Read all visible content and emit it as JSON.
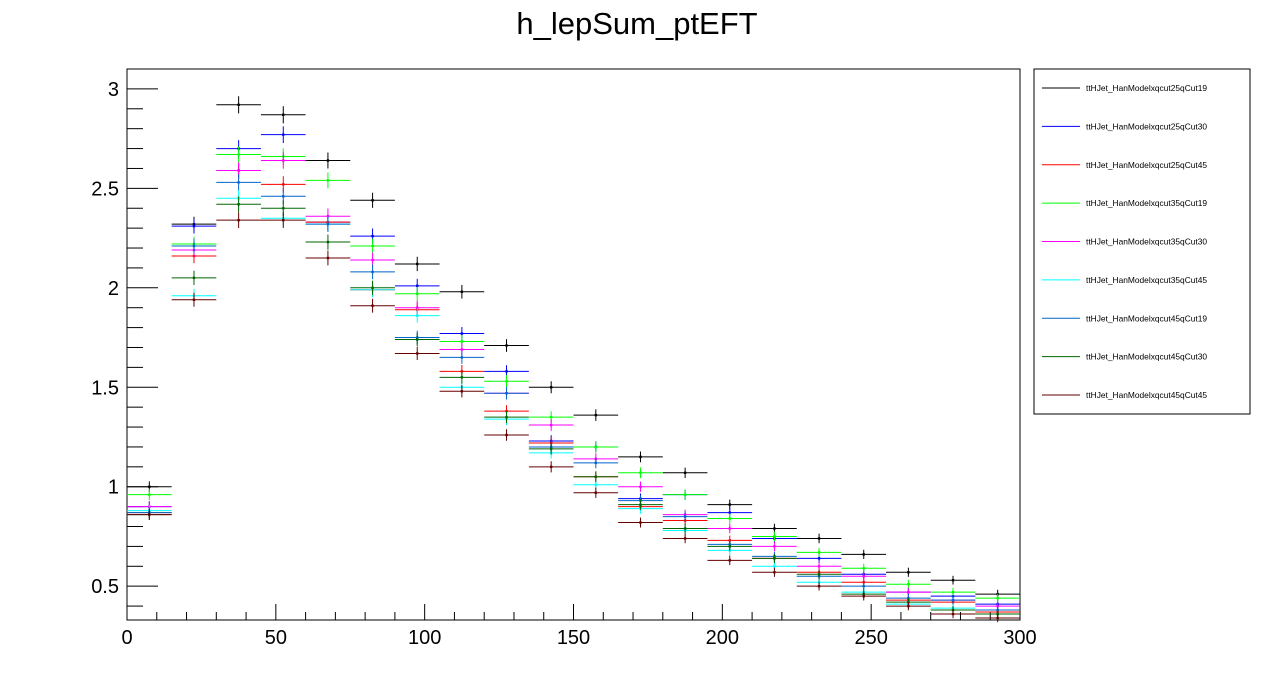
{
  "chart_data": {
    "type": "line",
    "title": "h_lepSum_ptEFT",
    "xlabel": "",
    "ylabel": "",
    "xlim": [
      0,
      300
    ],
    "ylim": [
      0.33,
      3.1
    ],
    "x_ticks": [
      0,
      50,
      100,
      150,
      200,
      250,
      300
    ],
    "y_ticks": [
      0.5,
      1,
      1.5,
      2,
      2.5,
      3
    ],
    "x_tick_labels": [
      "0",
      "50",
      "100",
      "150",
      "200",
      "250",
      "300"
    ],
    "y_tick_labels": [
      "0.5",
      "1",
      "1.5",
      "2",
      "2.5",
      "3"
    ],
    "grid": false,
    "legend_position": "right",
    "bin_edges": [
      0,
      15,
      30,
      45,
      60,
      75,
      90,
      105,
      120,
      135,
      150,
      165,
      180,
      195,
      210,
      225,
      240,
      255,
      270,
      285,
      300
    ],
    "series": [
      {
        "name": "ttHJet_HanModelxqcut25qCut19",
        "color": "#000000",
        "values": [
          1.0,
          2.32,
          2.92,
          2.87,
          2.64,
          2.44,
          2.12,
          1.98,
          1.71,
          1.5,
          1.36,
          1.15,
          1.07,
          0.91,
          0.79,
          0.74,
          0.66,
          0.57,
          0.53,
          0.46
        ],
        "errors": [
          0.012,
          0.022,
          0.028,
          0.028,
          0.025,
          0.023,
          0.021,
          0.019,
          0.017,
          0.015,
          0.014,
          0.012,
          0.011,
          0.01,
          0.009,
          0.009,
          0.008,
          0.008,
          0.007,
          0.007
        ]
      },
      {
        "name": "ttHJet_HanModelxqcut25qCut30",
        "color": "#0000ff",
        "values": [
          0.9,
          2.31,
          2.7,
          2.77,
          2.33,
          2.26,
          2.01,
          1.77,
          1.58,
          1.23,
          1.2,
          0.94,
          0.96,
          0.87,
          0.74,
          0.64,
          0.56,
          0.47,
          0.45,
          0.41
        ],
        "errors": [
          0.012,
          0.022,
          0.027,
          0.027,
          0.024,
          0.023,
          0.02,
          0.018,
          0.016,
          0.014,
          0.013,
          0.011,
          0.011,
          0.01,
          0.009,
          0.008,
          0.008,
          0.007,
          0.007,
          0.007
        ]
      },
      {
        "name": "ttHJet_HanModelxqcut25qCut45",
        "color": "#ff0000",
        "values": [
          0.87,
          2.16,
          2.59,
          2.52,
          2.33,
          1.99,
          1.89,
          1.58,
          1.38,
          1.22,
          1.05,
          0.9,
          0.83,
          0.73,
          0.64,
          0.57,
          0.52,
          0.43,
          0.42,
          0.37
        ],
        "errors": [
          0.012,
          0.021,
          0.026,
          0.026,
          0.024,
          0.021,
          0.02,
          0.017,
          0.015,
          0.014,
          0.012,
          0.011,
          0.01,
          0.009,
          0.009,
          0.008,
          0.007,
          0.007,
          0.007,
          0.006
        ]
      },
      {
        "name": "ttHJet_HanModelxqcut35qCut19",
        "color": "#00ff00",
        "values": [
          0.96,
          2.22,
          2.67,
          2.66,
          2.54,
          2.21,
          1.97,
          1.73,
          1.53,
          1.35,
          1.2,
          1.07,
          0.96,
          0.84,
          0.75,
          0.67,
          0.59,
          0.51,
          0.47,
          0.44
        ],
        "errors": [
          0.012,
          0.022,
          0.026,
          0.026,
          0.025,
          0.022,
          0.02,
          0.018,
          0.016,
          0.014,
          0.013,
          0.012,
          0.011,
          0.01,
          0.009,
          0.008,
          0.008,
          0.007,
          0.007,
          0.007
        ]
      },
      {
        "name": "ttHJet_HanModelxqcut35qCut30",
        "color": "#ff00ff",
        "values": [
          0.9,
          2.19,
          2.59,
          2.64,
          2.36,
          2.14,
          1.9,
          1.69,
          1.47,
          1.31,
          1.14,
          1.0,
          0.86,
          0.79,
          0.7,
          0.6,
          0.55,
          0.47,
          0.43,
          0.4
        ],
        "errors": [
          0.012,
          0.021,
          0.026,
          0.026,
          0.024,
          0.022,
          0.02,
          0.017,
          0.016,
          0.014,
          0.013,
          0.011,
          0.01,
          0.009,
          0.009,
          0.008,
          0.008,
          0.007,
          0.007,
          0.006
        ]
      },
      {
        "name": "ttHJet_HanModelxqcut35qCut45",
        "color": "#00ffff",
        "values": [
          0.88,
          1.96,
          2.45,
          2.35,
          2.32,
          1.99,
          1.86,
          1.5,
          1.34,
          1.17,
          1.01,
          0.89,
          0.78,
          0.68,
          0.6,
          0.52,
          0.47,
          0.41,
          0.39,
          0.36
        ],
        "errors": [
          0.012,
          0.02,
          0.025,
          0.025,
          0.024,
          0.021,
          0.02,
          0.016,
          0.015,
          0.013,
          0.012,
          0.011,
          0.01,
          0.009,
          0.008,
          0.008,
          0.007,
          0.007,
          0.006,
          0.006
        ]
      },
      {
        "name": "ttHJet_HanModelxqcut45qCut19",
        "color": "#0066cc",
        "values": [
          0.87,
          2.21,
          2.53,
          2.46,
          2.32,
          2.08,
          1.75,
          1.65,
          1.47,
          1.2,
          1.12,
          0.93,
          0.85,
          0.71,
          0.65,
          0.55,
          0.5,
          0.44,
          0.43,
          0.38
        ],
        "errors": [
          0.012,
          0.021,
          0.025,
          0.025,
          0.024,
          0.022,
          0.019,
          0.017,
          0.016,
          0.013,
          0.012,
          0.011,
          0.01,
          0.009,
          0.008,
          0.008,
          0.007,
          0.007,
          0.007,
          0.006
        ]
      },
      {
        "name": "ttHJet_HanModelxqcut45qCut30",
        "color": "#006600",
        "values": [
          0.86,
          2.05,
          2.42,
          2.4,
          2.23,
          2.0,
          1.74,
          1.55,
          1.35,
          1.19,
          1.05,
          0.91,
          0.79,
          0.7,
          0.64,
          0.56,
          0.46,
          0.42,
          0.38,
          0.36
        ],
        "errors": [
          0.012,
          0.021,
          0.025,
          0.025,
          0.023,
          0.021,
          0.019,
          0.017,
          0.015,
          0.013,
          0.012,
          0.011,
          0.01,
          0.009,
          0.008,
          0.008,
          0.007,
          0.006,
          0.006,
          0.006
        ]
      },
      {
        "name": "ttHJet_HanModelxqcut45qCut45",
        "color": "#660000",
        "values": [
          0.86,
          1.94,
          2.34,
          2.34,
          2.15,
          1.91,
          1.67,
          1.48,
          1.26,
          1.1,
          0.97,
          0.82,
          0.74,
          0.63,
          0.57,
          0.5,
          0.45,
          0.4,
          0.36,
          0.34
        ],
        "errors": [
          0.012,
          0.02,
          0.024,
          0.024,
          0.022,
          0.02,
          0.018,
          0.016,
          0.014,
          0.013,
          0.011,
          0.01,
          0.009,
          0.009,
          0.008,
          0.007,
          0.007,
          0.006,
          0.006,
          0.006
        ]
      }
    ]
  }
}
